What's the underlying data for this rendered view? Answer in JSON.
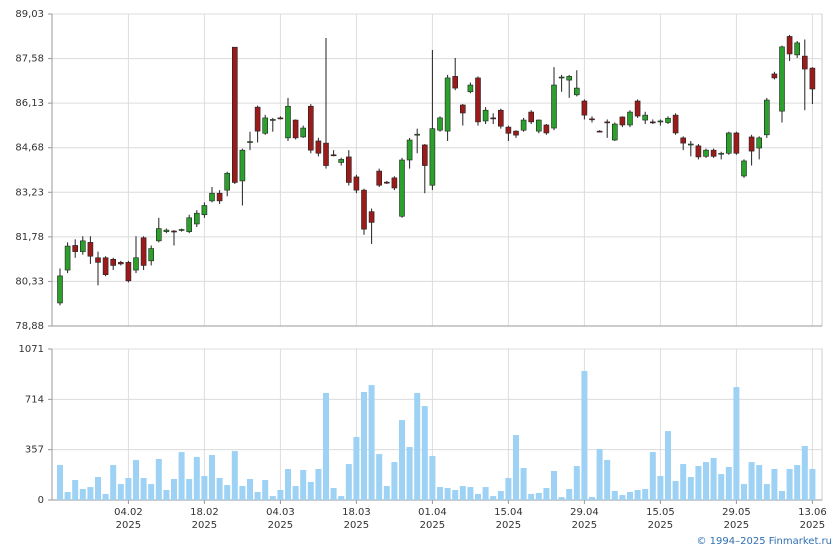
{
  "chart_data": [
    {
      "type": "candlestick",
      "up_color": "#2ca02c",
      "down_color": "#9b1b1b",
      "grid": true,
      "ylim": [
        78.88,
        89.03
      ],
      "yticks": [
        {
          "value": 78.88,
          "label": "78,88"
        },
        {
          "value": 80.33,
          "label": "80,33"
        },
        {
          "value": 81.78,
          "label": "81,78"
        },
        {
          "value": 83.23,
          "label": "83,23"
        },
        {
          "value": 84.68,
          "label": "84,68"
        },
        {
          "value": 86.13,
          "label": "86,13"
        },
        {
          "value": 87.58,
          "label": "87,58"
        },
        {
          "value": 89.03,
          "label": "89,03"
        }
      ],
      "open": [
        79.63,
        80.7,
        81.5,
        81.3,
        81.6,
        81.1,
        81.1,
        81.05,
        80.95,
        80.95,
        80.7,
        81.75,
        81.0,
        81.65,
        81.95,
        81.97,
        82.0,
        81.95,
        82.2,
        82.5,
        82.95,
        83.2,
        83.3,
        87.95,
        83.6,
        84.85,
        86.0,
        85.15,
        85.58,
        85.65,
        85.0,
        85.58,
        85.03,
        86.03,
        84.9,
        84.83,
        84.45,
        84.2,
        84.38,
        83.73,
        83.3,
        82.6,
        83.92,
        83.56,
        83.7,
        82.45,
        84.28,
        85.1,
        84.77,
        83.46,
        85.25,
        85.22,
        87.0,
        86.07,
        86.5,
        86.95,
        85.55,
        85.65,
        85.9,
        85.35,
        85.22,
        85.25,
        85.84,
        85.22,
        85.42,
        85.32,
        86.97,
        86.88,
        86.4,
        86.2,
        85.62,
        85.22,
        85.52,
        84.93,
        85.68,
        85.42,
        86.2,
        85.58,
        85.52,
        85.55,
        85.5,
        85.74,
        85.0,
        84.8,
        84.74,
        84.4,
        84.6,
        84.5,
        84.5,
        85.16,
        83.76,
        85.03,
        84.67,
        85.1,
        87.08,
        85.87,
        88.3,
        87.7,
        87.66,
        87.27
      ],
      "high": [
        80.75,
        81.6,
        81.7,
        81.8,
        81.8,
        81.3,
        81.15,
        81.1,
        81.0,
        81.0,
        81.8,
        81.8,
        81.5,
        82.4,
        82.05,
        82.0,
        82.05,
        82.5,
        82.65,
        82.9,
        83.4,
        83.3,
        83.9,
        87.95,
        84.65,
        85.2,
        86.05,
        85.75,
        85.65,
        85.7,
        86.3,
        85.6,
        85.4,
        86.1,
        85.0,
        88.25,
        84.6,
        84.35,
        84.6,
        83.8,
        83.35,
        82.7,
        84.0,
        83.6,
        83.75,
        84.35,
        85.0,
        85.3,
        84.8,
        87.86,
        85.7,
        87.05,
        87.6,
        86.1,
        86.8,
        87.0,
        86.0,
        85.8,
        85.95,
        85.4,
        85.25,
        85.65,
        85.9,
        85.6,
        85.45,
        87.3,
        87.05,
        87.05,
        87.2,
        86.25,
        85.7,
        85.25,
        85.6,
        85.5,
        85.7,
        85.9,
        86.25,
        85.85,
        85.6,
        85.6,
        85.7,
        85.8,
        85.05,
        84.9,
        84.8,
        84.65,
        84.65,
        84.55,
        85.2,
        85.2,
        84.3,
        85.1,
        85.05,
        86.3,
        87.15,
        88.0,
        88.35,
        88.15,
        88.2,
        87.3
      ],
      "low": [
        79.55,
        80.6,
        81.1,
        81.2,
        80.9,
        80.2,
        80.5,
        80.7,
        80.85,
        80.3,
        80.6,
        80.7,
        80.85,
        81.6,
        81.9,
        81.5,
        81.95,
        81.9,
        82.1,
        82.4,
        82.9,
        82.85,
        83.1,
        83.5,
        82.8,
        84.6,
        84.85,
        85.1,
        85.2,
        85.6,
        84.9,
        84.95,
        85.0,
        84.5,
        84.4,
        84.0,
        84.4,
        84.1,
        83.45,
        83.2,
        81.85,
        81.55,
        83.4,
        83.5,
        83.3,
        82.4,
        84.0,
        84.5,
        83.2,
        83.3,
        85.2,
        84.9,
        86.55,
        85.4,
        86.45,
        85.4,
        85.45,
        85.45,
        85.3,
        84.9,
        85.0,
        85.2,
        85.45,
        85.15,
        85.1,
        85.25,
        86.5,
        86.3,
        86.35,
        85.6,
        85.5,
        85.18,
        85.0,
        84.9,
        85.35,
        85.35,
        85.65,
        85.45,
        85.45,
        85.4,
        85.45,
        85.1,
        84.6,
        84.4,
        84.3,
        84.35,
        84.35,
        84.3,
        84.45,
        84.45,
        83.7,
        84.1,
        84.3,
        85.0,
        86.9,
        85.5,
        87.5,
        87.6,
        85.9,
        86.1
      ],
      "close": [
        80.51,
        81.48,
        81.3,
        81.65,
        81.15,
        80.95,
        80.55,
        80.85,
        80.9,
        80.35,
        81.1,
        80.85,
        81.4,
        82.05,
        82.0,
        81.95,
        82.02,
        82.4,
        82.55,
        82.8,
        83.2,
        82.95,
        83.85,
        83.55,
        84.6,
        84.88,
        85.22,
        85.65,
        85.6,
        85.64,
        86.03,
        85.0,
        85.32,
        84.6,
        84.5,
        84.1,
        84.43,
        84.3,
        83.55,
        83.3,
        82.03,
        82.25,
        83.46,
        83.55,
        83.37,
        84.28,
        84.93,
        85.12,
        84.1,
        85.3,
        85.65,
        86.95,
        86.62,
        85.81,
        86.72,
        85.52,
        85.9,
        85.62,
        85.38,
        85.15,
        85.09,
        85.58,
        85.52,
        85.58,
        85.16,
        86.72,
        86.98,
        87.0,
        86.62,
        85.74,
        85.6,
        85.2,
        85.5,
        85.45,
        85.42,
        85.84,
        85.71,
        85.74,
        85.5,
        85.55,
        85.64,
        85.16,
        84.83,
        84.8,
        84.38,
        84.6,
        84.4,
        84.5,
        85.16,
        84.5,
        84.25,
        84.57,
        85.0,
        86.23,
        86.95,
        87.96,
        87.73,
        88.09,
        87.24,
        86.59
      ]
    },
    {
      "type": "bar",
      "color": "#9dd2f5",
      "grid": true,
      "ylim": [
        0,
        1071
      ],
      "yticks": [
        0,
        357,
        714,
        1071
      ],
      "x_sublabel": "2025",
      "categories": [
        null,
        null,
        null,
        null,
        null,
        null,
        null,
        null,
        null,
        "04.02",
        null,
        null,
        null,
        null,
        null,
        null,
        null,
        null,
        null,
        "18.02",
        null,
        null,
        null,
        null,
        null,
        null,
        null,
        null,
        null,
        "04.03",
        null,
        null,
        null,
        null,
        null,
        null,
        null,
        null,
        null,
        "18.03",
        null,
        null,
        null,
        null,
        null,
        null,
        null,
        null,
        null,
        "01.04",
        null,
        null,
        null,
        null,
        null,
        null,
        null,
        null,
        null,
        "15.04",
        null,
        null,
        null,
        null,
        null,
        null,
        null,
        null,
        null,
        "29.04",
        null,
        null,
        null,
        null,
        null,
        null,
        null,
        null,
        null,
        "15.05",
        null,
        null,
        null,
        null,
        null,
        null,
        null,
        null,
        null,
        "29.05",
        null,
        null,
        null,
        null,
        null,
        null,
        null,
        null,
        null,
        "13.06"
      ],
      "values": [
        248,
        57,
        142,
        78,
        92,
        163,
        43,
        248,
        113,
        156,
        284,
        156,
        113,
        291,
        71,
        149,
        340,
        149,
        305,
        170,
        319,
        156,
        106,
        347,
        99,
        149,
        57,
        142,
        28,
        71,
        220,
        99,
        213,
        128,
        220,
        759,
        85,
        28,
        255,
        447,
        766,
        815,
        326,
        99,
        269,
        567,
        376,
        759,
        666,
        312,
        92,
        85,
        71,
        99,
        92,
        43,
        92,
        28,
        64,
        156,
        461,
        227,
        43,
        50,
        85,
        206,
        21,
        78,
        241,
        915,
        21,
        362,
        284,
        64,
        35,
        57,
        71,
        78,
        340,
        170,
        489,
        135,
        255,
        163,
        241,
        269,
        298,
        184,
        234,
        801,
        113,
        269,
        248,
        113,
        220,
        64,
        220,
        248,
        383,
        220
      ]
    }
  ],
  "footer": "© 1994–2025 Finmarket.ru"
}
